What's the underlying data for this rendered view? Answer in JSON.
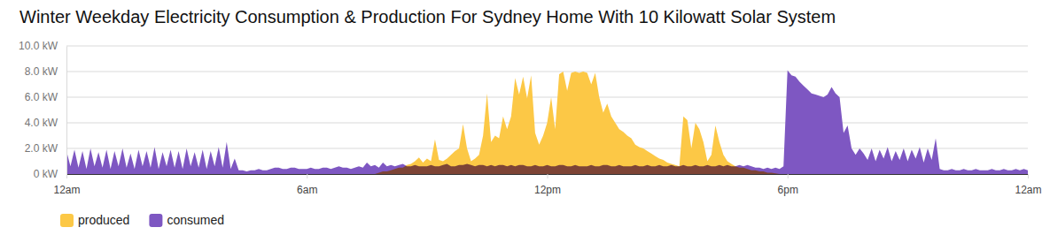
{
  "chart_data": {
    "type": "area",
    "title": "Winter Weekday Electricity Consumption & Production For Sydney Home With 10 Kilowatt Solar System",
    "x": [
      0,
      0.1,
      0.2,
      0.3,
      0.4,
      0.5,
      0.6,
      0.7,
      0.8,
      0.9,
      1,
      1.1,
      1.2,
      1.3,
      1.4,
      1.5,
      1.6,
      1.7,
      1.8,
      1.9,
      2,
      2.1,
      2.2,
      2.3,
      2.4,
      2.5,
      2.6,
      2.7,
      2.8,
      2.9,
      3,
      3.1,
      3.2,
      3.3,
      3.4,
      3.5,
      3.6,
      3.7,
      3.8,
      3.9,
      4,
      4.1,
      4.2,
      4.3,
      4.4,
      4.5,
      4.6,
      4.7,
      4.8,
      4.9,
      5,
      5.1,
      5.2,
      5.3,
      5.4,
      5.5,
      5.6,
      5.7,
      5.8,
      5.9,
      6,
      6.1,
      6.2,
      6.3,
      6.4,
      6.5,
      6.6,
      6.7,
      6.8,
      6.9,
      7,
      7.1,
      7.2,
      7.3,
      7.4,
      7.5,
      7.6,
      7.7,
      7.8,
      7.9,
      8,
      8.1,
      8.2,
      8.3,
      8.4,
      8.5,
      8.6,
      8.7,
      8.8,
      8.9,
      9,
      9.1,
      9.2,
      9.3,
      9.4,
      9.5,
      9.6,
      9.7,
      9.8,
      9.9,
      10,
      10.1,
      10.2,
      10.3,
      10.4,
      10.5,
      10.6,
      10.7,
      10.8,
      10.9,
      11,
      11.1,
      11.2,
      11.3,
      11.4,
      11.5,
      11.6,
      11.7,
      11.8,
      11.9,
      12,
      12.1,
      12.2,
      12.3,
      12.4,
      12.5,
      12.6,
      12.7,
      12.8,
      12.9,
      13,
      13.1,
      13.2,
      13.3,
      13.4,
      13.5,
      13.6,
      13.7,
      13.8,
      13.9,
      14,
      14.1,
      14.2,
      14.3,
      14.4,
      14.5,
      14.6,
      14.7,
      14.8,
      14.9,
      15,
      15.1,
      15.2,
      15.3,
      15.4,
      15.5,
      15.6,
      15.7,
      15.8,
      15.9,
      16,
      16.1,
      16.2,
      16.3,
      16.4,
      16.5,
      16.6,
      16.7,
      16.8,
      16.9,
      17,
      17.1,
      17.2,
      17.3,
      17.4,
      17.5,
      17.6,
      17.7,
      17.8,
      17.9,
      18,
      18.1,
      18.2,
      18.3,
      18.4,
      18.5,
      18.6,
      18.7,
      18.8,
      18.9,
      19,
      19.1,
      19.2,
      19.3,
      19.4,
      19.5,
      19.6,
      19.7,
      19.8,
      19.9,
      20,
      20.1,
      20.2,
      20.3,
      20.4,
      20.5,
      20.6,
      20.7,
      20.8,
      20.9,
      21,
      21.1,
      21.2,
      21.3,
      21.4,
      21.5,
      21.6,
      21.7,
      21.8,
      21.9,
      22,
      22.1,
      22.2,
      22.3,
      22.4,
      22.5,
      22.6,
      22.7,
      22.8,
      22.9,
      23,
      23.1,
      23.2,
      23.3,
      23.4,
      23.5,
      23.6,
      23.7,
      23.8,
      23.9,
      24
    ],
    "series": [
      {
        "name": "produced",
        "color": "#fcc846",
        "values": [
          0,
          0,
          0,
          0,
          0,
          0,
          0,
          0,
          0,
          0,
          0,
          0,
          0,
          0,
          0,
          0,
          0,
          0,
          0,
          0,
          0,
          0,
          0,
          0,
          0,
          0,
          0,
          0,
          0,
          0,
          0,
          0,
          0,
          0,
          0,
          0,
          0,
          0,
          0,
          0,
          0,
          0,
          0,
          0,
          0,
          0,
          0,
          0,
          0,
          0,
          0,
          0,
          0,
          0,
          0,
          0,
          0,
          0,
          0,
          0,
          0,
          0,
          0,
          0,
          0,
          0,
          0,
          0,
          0,
          0,
          0,
          0,
          0,
          0,
          0,
          0,
          0,
          0,
          0.1,
          0.2,
          0.2,
          0.3,
          0.4,
          0.5,
          0.5,
          0.7,
          0.8,
          1.0,
          1.3,
          0.9,
          1.2,
          1.0,
          2.7,
          1.1,
          1.0,
          1.2,
          1.5,
          1.8,
          2.0,
          3.9,
          2.0,
          1.0,
          1.2,
          1.5,
          3.0,
          6.3,
          2.5,
          3.0,
          2.8,
          4.5,
          3.5,
          4.5,
          7.5,
          6.2,
          7.6,
          5.9,
          7.7,
          3.2,
          2.3,
          3.0,
          4.0,
          6.0,
          3.5,
          7.8,
          8.0,
          6.5,
          7.9,
          8.0,
          7.9,
          8.0,
          7.9,
          7.0,
          7.9,
          6.0,
          4.8,
          5.5,
          4.5,
          4.0,
          3.5,
          3.3,
          3.0,
          2.8,
          2.3,
          2.1,
          2.0,
          1.8,
          1.6,
          1.4,
          1.2,
          1.1,
          0.9,
          0.8,
          0.7,
          0.6,
          4.5,
          4.2,
          2.0,
          4.0,
          3.5,
          2.5,
          1.0,
          1.5,
          3.8,
          2.5,
          1.5,
          1.0,
          0.8,
          0.6,
          0.5,
          0.5,
          0.4,
          0.3,
          0.3,
          0.2,
          0.2,
          0.1,
          0.1,
          0.05,
          0,
          0,
          0,
          0,
          0,
          0,
          0,
          0,
          0,
          0,
          0,
          0,
          0,
          0,
          0,
          0,
          0,
          0,
          0,
          0,
          0,
          0,
          0,
          0,
          0,
          0,
          0,
          0,
          0,
          0,
          0,
          0,
          0,
          0,
          0,
          0,
          0,
          0,
          0,
          0,
          0,
          0,
          0,
          0,
          0,
          0,
          0,
          0,
          0,
          0,
          0,
          0,
          0,
          0,
          0,
          0,
          0,
          0,
          0,
          0,
          0,
          0,
          0
        ]
      },
      {
        "name": "consumed",
        "color": "#7e57c2",
        "values": [
          1.8,
          0.6,
          1.9,
          0.5,
          1.8,
          0.4,
          2.0,
          0.6,
          1.7,
          0.5,
          1.9,
          0.4,
          1.8,
          0.6,
          2.0,
          0.5,
          1.6,
          0.4,
          1.9,
          0.6,
          1.8,
          0.5,
          2.1,
          0.4,
          1.7,
          0.6,
          1.9,
          0.5,
          1.8,
          0.4,
          2.0,
          0.6,
          1.7,
          0.5,
          1.9,
          0.4,
          1.8,
          0.6,
          2.1,
          0.5,
          2.5,
          0.4,
          1.2,
          0.3,
          0.3,
          0.2,
          0.3,
          0.3,
          0.4,
          0.3,
          0.3,
          0.4,
          0.5,
          0.5,
          0.4,
          0.4,
          0.5,
          0.5,
          0.4,
          0.4,
          0.4,
          0.5,
          0.4,
          0.4,
          0.5,
          0.5,
          0.4,
          0.5,
          0.6,
          0.5,
          0.5,
          0.4,
          0.5,
          0.6,
          0.5,
          0.9,
          0.6,
          0.7,
          0.5,
          0.9,
          0.6,
          0.7,
          0.6,
          0.7,
          0.8,
          0.6,
          0.6,
          0.7,
          0.6,
          0.6,
          0.6,
          0.7,
          0.6,
          0.6,
          0.7,
          0.8,
          0.6,
          0.6,
          0.7,
          0.7,
          0.8,
          0.7,
          0.6,
          0.7,
          0.7,
          0.6,
          0.7,
          0.6,
          0.7,
          0.7,
          0.6,
          0.7,
          0.6,
          0.7,
          0.7,
          0.6,
          0.6,
          0.7,
          0.6,
          0.6,
          0.7,
          0.6,
          0.6,
          0.7,
          0.7,
          0.6,
          0.6,
          0.7,
          0.6,
          0.6,
          0.6,
          0.7,
          0.6,
          0.6,
          0.7,
          0.7,
          0.6,
          0.6,
          0.7,
          0.6,
          0.6,
          0.6,
          0.7,
          0.6,
          0.6,
          0.7,
          0.6,
          0.6,
          0.7,
          0.6,
          0.6,
          0.7,
          0.6,
          0.6,
          0.7,
          0.6,
          0.6,
          0.7,
          0.6,
          0.6,
          0.7,
          0.6,
          0.6,
          0.7,
          0.6,
          0.7,
          0.6,
          0.6,
          0.7,
          0.6,
          0.7,
          0.6,
          0.5,
          0.5,
          0.4,
          0.5,
          0.4,
          0.5,
          0.4,
          0.6,
          8.1,
          7.7,
          7.6,
          7.2,
          6.9,
          6.6,
          6.3,
          6.2,
          6.1,
          6.0,
          6.2,
          6.8,
          6.3,
          6.0,
          3.2,
          3.8,
          2.0,
          1.5,
          2.0,
          1.6,
          1.1,
          2.0,
          1.0,
          1.9,
          1.2,
          2.1,
          1.0,
          1.8,
          1.1,
          2.0,
          1.0,
          1.9,
          1.2,
          2.1,
          0.9,
          2.0,
          1.1,
          2.8,
          0.4,
          0.3,
          0.3,
          0.4,
          0.3,
          0.3,
          0.4,
          0.3,
          0.3,
          0.4,
          0.3,
          0.3,
          0.3,
          0.4,
          0.3,
          0.3,
          0.4,
          0.3,
          0.3,
          0.4,
          0.3,
          0.4,
          0.3
        ]
      }
    ],
    "xlim": [
      0,
      24
    ],
    "xticks": [
      {
        "value": 0,
        "label": "12am"
      },
      {
        "value": 6,
        "label": "6am"
      },
      {
        "value": 12,
        "label": "12pm"
      },
      {
        "value": 18,
        "label": "6pm"
      },
      {
        "value": 24,
        "label": "12am"
      }
    ],
    "ylim": [
      0,
      10
    ],
    "yticks": [
      {
        "value": 0,
        "label": "0 kW"
      },
      {
        "value": 2,
        "label": "2.0 kW"
      },
      {
        "value": 4,
        "label": "4.0 kW"
      },
      {
        "value": 6,
        "label": "6.0 kW"
      },
      {
        "value": 8,
        "label": "8.0 kW"
      },
      {
        "value": 10,
        "label": "10.0 kW"
      }
    ],
    "grid": true,
    "legend": "bottom"
  }
}
